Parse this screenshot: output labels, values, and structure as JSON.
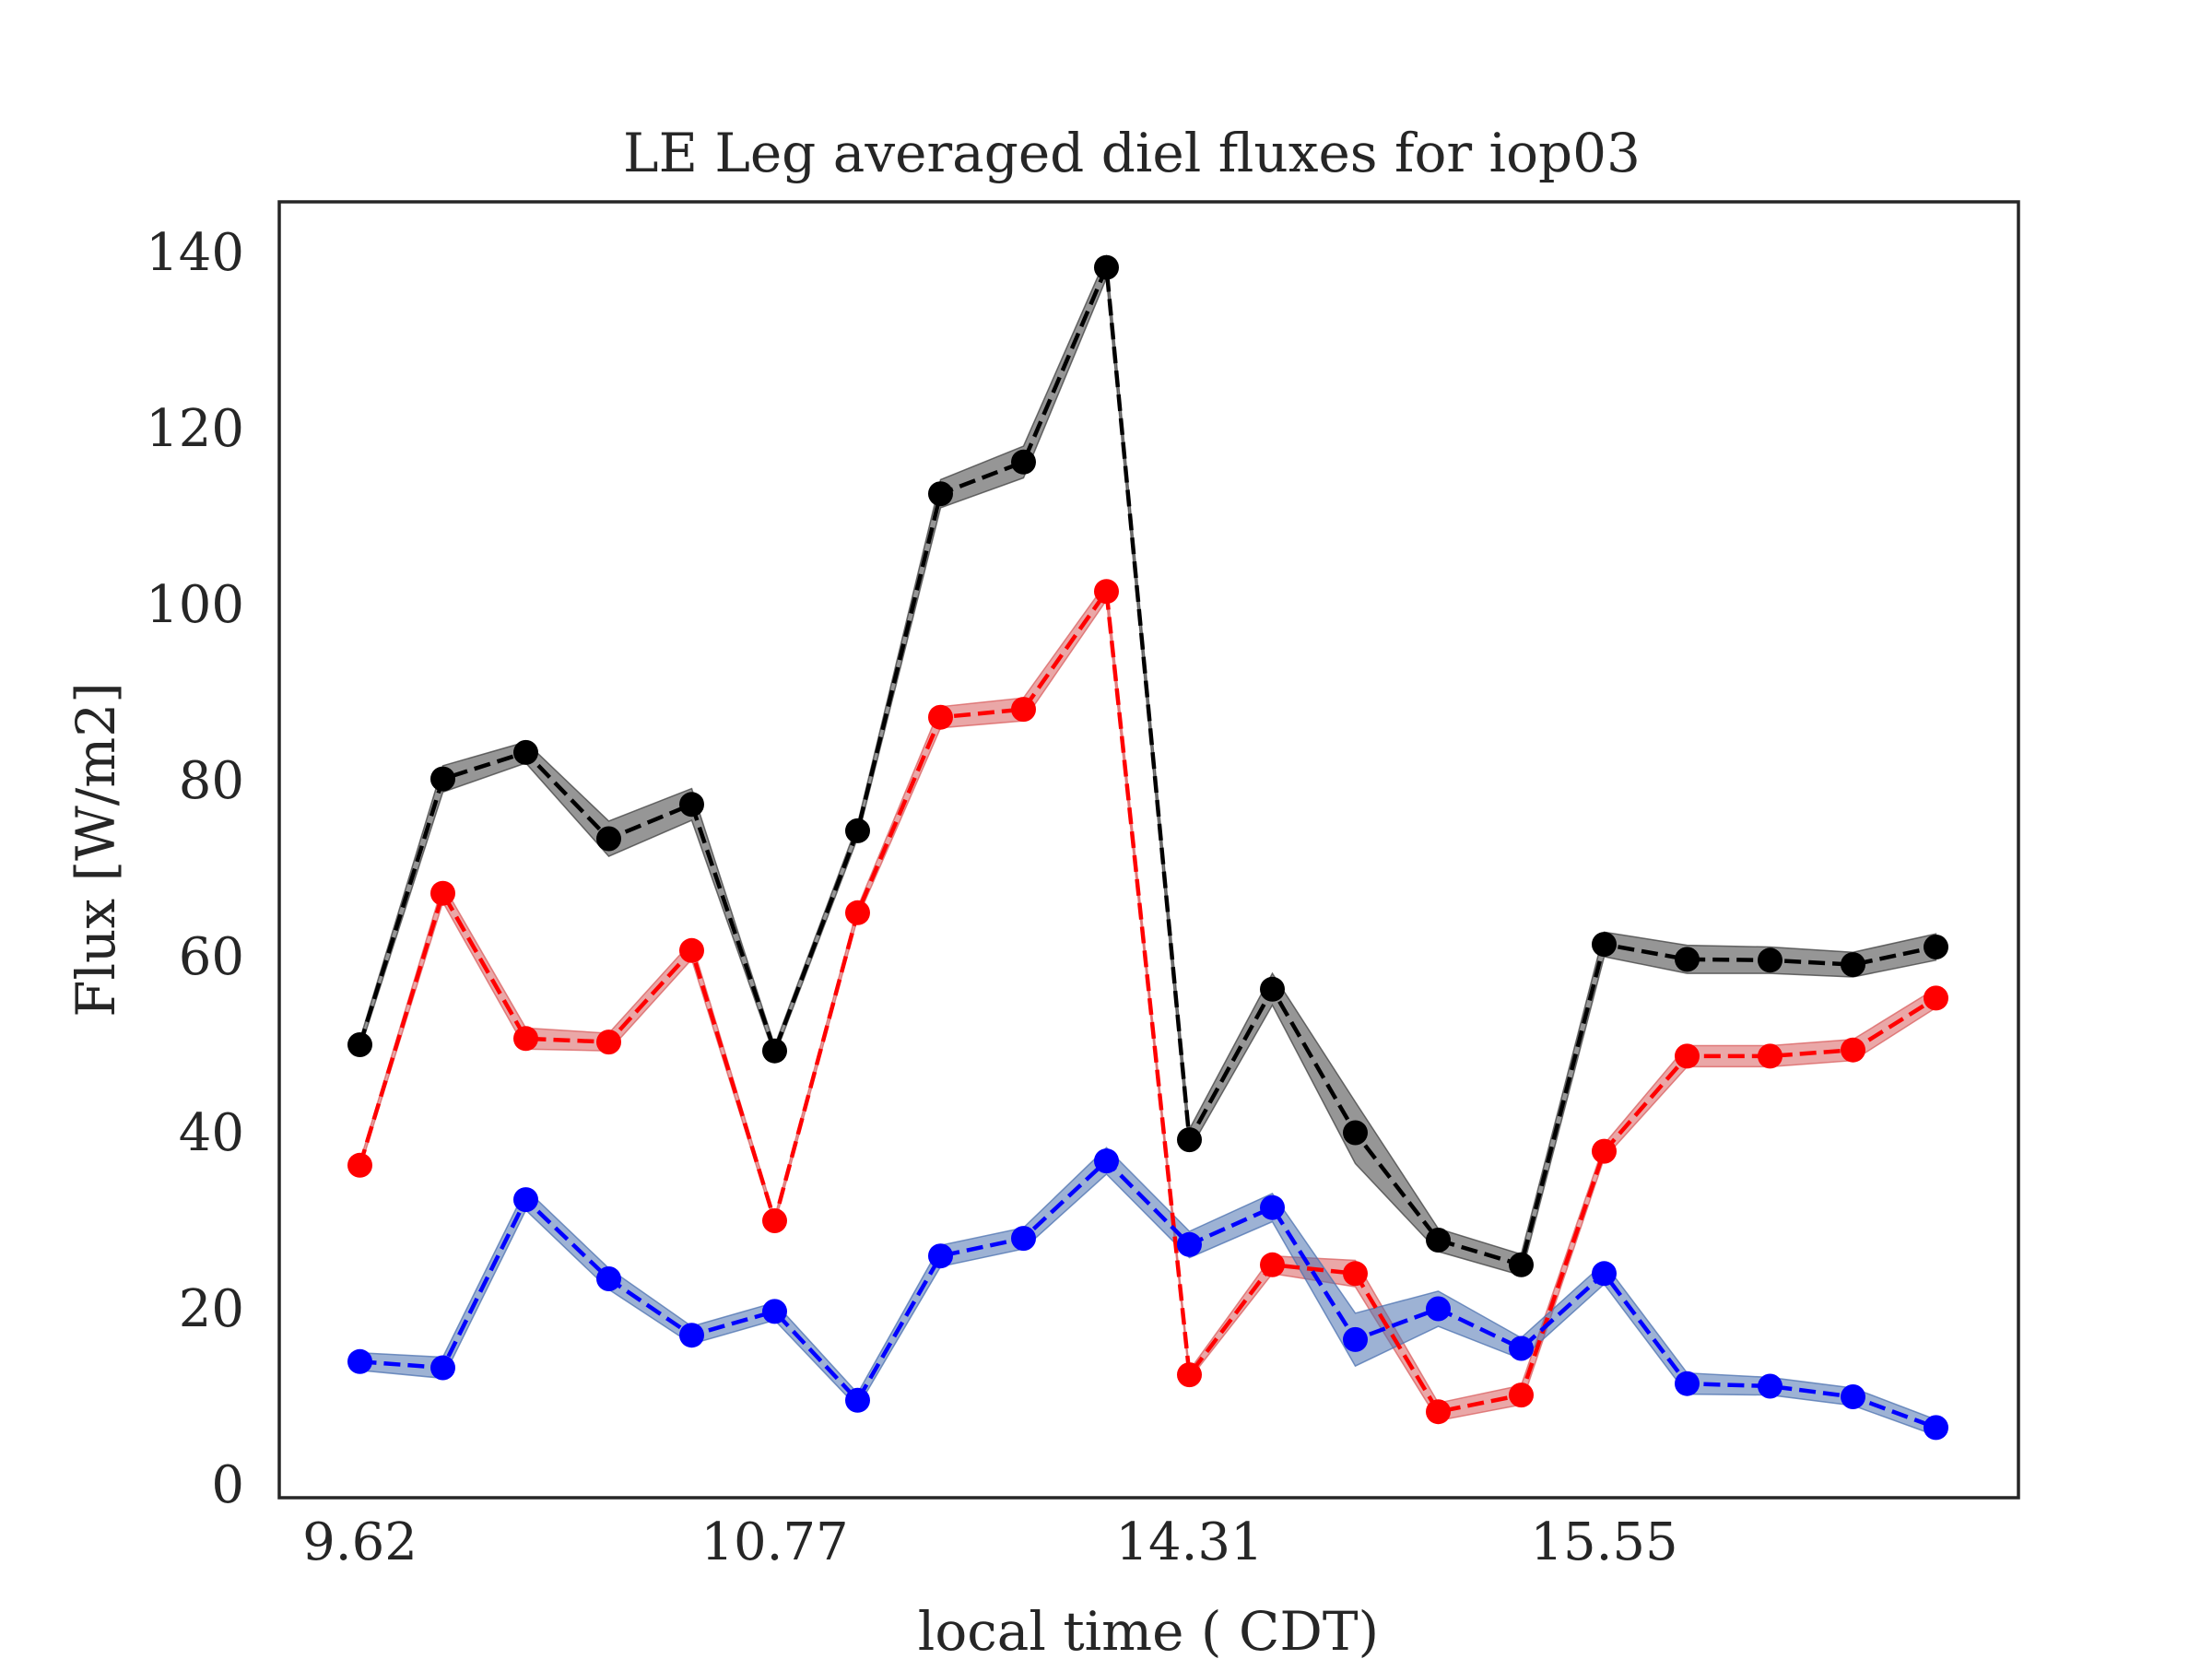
{
  "chart_data": {
    "type": "line",
    "title": "LE Leg averaged diel fluxes for iop03",
    "xlabel": "local time ( CDT)",
    "ylabel": "Flux [W/m2]",
    "ylim": [
      0,
      140
    ],
    "xlim": [
      -1,
      20
    ],
    "yticks": [
      0,
      20,
      40,
      60,
      80,
      100,
      120,
      140
    ],
    "xticks": [
      {
        "pos": 0,
        "label": "9.62"
      },
      {
        "pos": 5,
        "label": "10.77"
      },
      {
        "pos": 10,
        "label": "14.31"
      },
      {
        "pos": 15,
        "label": "15.55"
      }
    ],
    "grid": false,
    "series": [
      {
        "color": "#000000",
        "band_color": "#404040",
        "values": [
          50.0,
          80.2,
          83.2,
          73.4,
          77.3,
          49.3,
          74.3,
          112.6,
          116.2,
          138.3,
          39.2,
          56.3,
          40.0,
          27.8,
          25.0,
          61.4,
          59.7,
          59.6,
          59.1,
          61.1
        ],
        "band": [
          0.6,
          1.5,
          1.2,
          2.0,
          1.8,
          0.6,
          0.8,
          1.6,
          1.8,
          1.2,
          1.2,
          1.8,
          3.5,
          1.3,
          1.2,
          1.4,
          1.6,
          1.5,
          1.4,
          1.5
        ]
      },
      {
        "color": "#ff0000",
        "band_color": "#d95f5f",
        "values": [
          36.3,
          67.2,
          50.7,
          50.3,
          60.7,
          30.0,
          65.0,
          87.2,
          88.1,
          101.5,
          12.5,
          25.0,
          24.0,
          8.3,
          10.2,
          37.9,
          48.7,
          48.7,
          49.4,
          55.3
        ],
        "band": [
          0.4,
          1.0,
          1.2,
          1.0,
          1.0,
          0.4,
          0.6,
          1.2,
          1.3,
          1.0,
          0.5,
          1.0,
          1.5,
          1.0,
          1.1,
          0.8,
          1.2,
          1.2,
          1.2,
          1.1
        ]
      },
      {
        "color": "#0000ff",
        "band_color": "#4c72b0",
        "values": [
          14.0,
          13.3,
          32.4,
          23.4,
          17.0,
          19.7,
          9.6,
          26.0,
          28.0,
          36.8,
          27.3,
          31.5,
          16.5,
          20.0,
          15.5,
          24.0,
          11.5,
          11.2,
          10.0,
          6.5
        ],
        "band": [
          1.0,
          1.2,
          1.2,
          1.2,
          1.0,
          1.0,
          0.8,
          1.2,
          1.2,
          1.5,
          1.5,
          1.6,
          3.0,
          2.0,
          1.2,
          1.2,
          1.2,
          1.0,
          1.0,
          0.9
        ]
      }
    ]
  }
}
